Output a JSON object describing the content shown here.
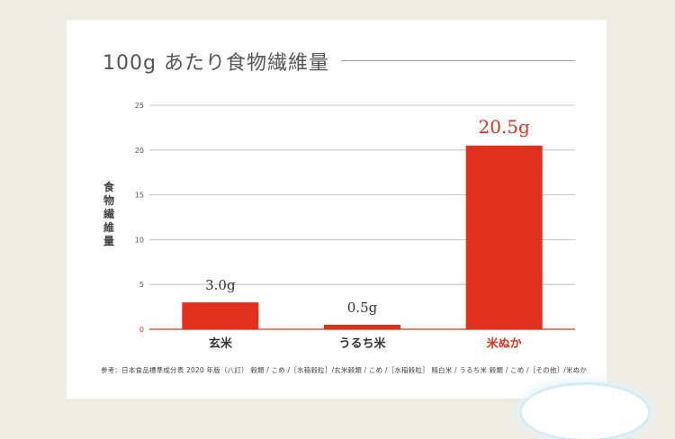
{
  "chart_data": {
    "type": "bar",
    "title": "100g あたり食物繊維量",
    "ylabel": "食物繊維量",
    "xlabel": "",
    "ylim": [
      0,
      25
    ],
    "yticks": [
      0,
      5,
      10,
      15,
      20,
      25
    ],
    "grid": true,
    "categories": [
      "玄米",
      "うるち米",
      "米ぬか"
    ],
    "values": [
      3.0,
      0.5,
      20.5
    ],
    "data_labels": [
      "3.0g",
      "0.5g",
      "20.5g"
    ],
    "highlight_index": 2,
    "colors": {
      "bar": "#e0311f",
      "highlight_text": "#e0311f",
      "text": "#333333",
      "grid": "#b5b5b5"
    }
  },
  "footnote": "参考：日本食品標準成分表 2020 年版（八訂） 穀類 / こめ /［水稲穀粒］/玄米穀類 / こめ /［水稲穀粒］ 精白米 / うるち米 穀類 / こめ /［その他］/米ぬか"
}
